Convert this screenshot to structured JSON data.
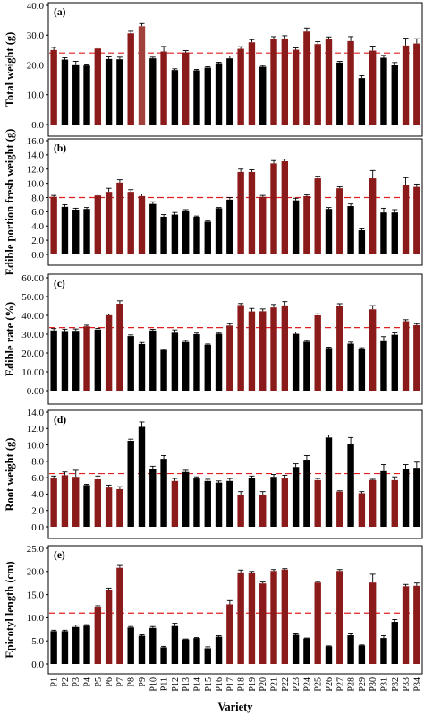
{
  "colors": {
    "dark_red": "#8b1a1a",
    "black": "#000000",
    "highlight_bar": "#a0413b",
    "reference_line": "#e02020",
    "frame": "#000000"
  },
  "x_axis_title": "Variety",
  "chart_data": [
    {
      "type": "bar",
      "panel_label": "(a)",
      "ylabel": "Total weight (g)",
      "ylim": [
        0,
        40
      ],
      "yticks": [
        "0.0",
        "10.0",
        "20.0",
        "30.0",
        "40.0"
      ],
      "yticks_values": [
        0,
        10,
        20,
        30,
        40
      ],
      "reference_line": 24.0,
      "categories": [
        "P1",
        "P2",
        "P3",
        "P4",
        "P5",
        "P6",
        "P7",
        "P8",
        "P9",
        "P10",
        "P11",
        "P12",
        "P13",
        "P14",
        "P15",
        "P16",
        "P17",
        "P18",
        "P19",
        "P20",
        "P21",
        "P22",
        "P23",
        "P24",
        "P25",
        "P26",
        "P27",
        "P28",
        "P29",
        "P30",
        "P31",
        "P32",
        "P33",
        "P34"
      ],
      "values": [
        25.0,
        21.8,
        20.2,
        19.8,
        25.5,
        22.0,
        21.9,
        30.6,
        33.0,
        22.2,
        24.5,
        18.3,
        24.2,
        18.2,
        19.1,
        20.6,
        22.2,
        25.4,
        27.6,
        19.4,
        28.7,
        28.9,
        25.1,
        31.2,
        27.0,
        28.6,
        20.8,
        28.0,
        15.6,
        24.8,
        22.4,
        20.1,
        26.5,
        27.2
      ],
      "errors": [
        0.9,
        0.6,
        1.0,
        0.5,
        0.5,
        0.7,
        0.7,
        0.7,
        0.9,
        0.4,
        1.7,
        0.4,
        0.6,
        0.3,
        0.3,
        0.3,
        0.8,
        0.7,
        0.9,
        0.4,
        0.8,
        0.9,
        0.6,
        1.2,
        0.8,
        0.8,
        0.4,
        1.5,
        0.8,
        1.5,
        0.8,
        0.7,
        2.5,
        1.6
      ],
      "colors": [
        "dark_red",
        "black",
        "black",
        "black",
        "dark_red",
        "black",
        "black",
        "dark_red",
        "highlight_bar",
        "black",
        "dark_red",
        "black",
        "dark_red",
        "black",
        "black",
        "black",
        "black",
        "dark_red",
        "dark_red",
        "black",
        "dark_red",
        "dark_red",
        "dark_red",
        "dark_red",
        "dark_red",
        "dark_red",
        "black",
        "dark_red",
        "black",
        "dark_red",
        "black",
        "black",
        "dark_red",
        "dark_red"
      ]
    },
    {
      "type": "bar",
      "panel_label": "(b)",
      "ylabel": "Edible portion fresh weight (g)",
      "ylim": [
        0,
        16
      ],
      "yticks": [
        "0.0",
        "2.0",
        "4.0",
        "6.0",
        "8.0",
        "10.0",
        "12.0",
        "14.0",
        "16.0"
      ],
      "yticks_values": [
        0,
        2,
        4,
        6,
        8,
        10,
        12,
        14,
        16
      ],
      "reference_line": 8.0,
      "categories": [
        "P1",
        "P2",
        "P3",
        "P4",
        "P5",
        "P6",
        "P7",
        "P8",
        "P9",
        "P10",
        "P11",
        "P12",
        "P13",
        "P14",
        "P15",
        "P16",
        "P17",
        "P18",
        "P19",
        "P20",
        "P21",
        "P22",
        "P23",
        "P24",
        "P25",
        "P26",
        "P27",
        "P28",
        "P29",
        "P30",
        "P31",
        "P32",
        "P33",
        "P34"
      ],
      "values": [
        8.1,
        6.7,
        6.3,
        6.4,
        8.3,
        8.8,
        10.1,
        8.8,
        8.2,
        7.1,
        5.3,
        5.6,
        6.1,
        5.3,
        4.6,
        6.5,
        7.7,
        11.6,
        11.6,
        8.1,
        12.8,
        13.1,
        7.6,
        8.2,
        10.7,
        6.4,
        9.3,
        6.8,
        3.4,
        10.7,
        5.9,
        5.9,
        9.7,
        9.5
      ],
      "errors": [
        0.2,
        0.3,
        0.2,
        0.2,
        0.2,
        0.5,
        0.4,
        0.3,
        0.3,
        0.3,
        0.3,
        0.3,
        0.2,
        0.1,
        0.1,
        0.1,
        0.3,
        0.4,
        0.3,
        0.2,
        0.4,
        0.3,
        0.3,
        0.2,
        0.3,
        0.2,
        0.2,
        0.3,
        0.2,
        1.1,
        0.6,
        0.4,
        1.1,
        0.4
      ],
      "colors": [
        "dark_red",
        "black",
        "black",
        "black",
        "dark_red",
        "dark_red",
        "dark_red",
        "dark_red",
        "dark_red",
        "black",
        "black",
        "black",
        "black",
        "black",
        "black",
        "black",
        "black",
        "dark_red",
        "dark_red",
        "dark_red",
        "dark_red",
        "dark_red",
        "black",
        "dark_red",
        "dark_red",
        "black",
        "dark_red",
        "black",
        "black",
        "dark_red",
        "black",
        "black",
        "dark_red",
        "dark_red"
      ]
    },
    {
      "type": "bar",
      "panel_label": "(c)",
      "ylabel": "Edible rate (%)",
      "ylim": [
        0,
        60
      ],
      "yticks": [
        "0.00",
        "10.00",
        "20.00",
        "30.00",
        "40.00",
        "50.00",
        "60.00"
      ],
      "yticks_values": [
        0,
        10,
        20,
        30,
        40,
        50,
        60
      ],
      "reference_line": 33.5,
      "categories": [
        "P1",
        "P2",
        "P3",
        "P4",
        "P5",
        "P6",
        "P7",
        "P8",
        "P9",
        "P10",
        "P11",
        "P12",
        "P13",
        "P14",
        "P15",
        "P16",
        "P17",
        "P18",
        "P19",
        "P20",
        "P21",
        "P22",
        "P23",
        "P24",
        "P25",
        "P26",
        "P27",
        "P28",
        "P29",
        "P30",
        "P31",
        "P32",
        "P33",
        "P34"
      ],
      "values": [
        32.0,
        31.7,
        31.8,
        34.2,
        32.5,
        40.0,
        46.2,
        29.0,
        24.8,
        32.0,
        21.7,
        30.8,
        25.9,
        30.0,
        24.4,
        30.2,
        34.6,
        45.5,
        42.1,
        42.2,
        44.2,
        45.3,
        30.2,
        26.0,
        40.0,
        22.7,
        45.2,
        25.0,
        22.4,
        43.2,
        26.3,
        29.7,
        36.9,
        34.8
      ],
      "errors": [
        1.0,
        1.0,
        1.0,
        0.6,
        0.6,
        0.6,
        1.5,
        0.6,
        0.8,
        0.6,
        0.4,
        1.5,
        0.8,
        0.6,
        0.4,
        0.4,
        1.0,
        0.8,
        1.6,
        1.2,
        1.6,
        2.0,
        1.0,
        0.6,
        0.8,
        0.4,
        1.0,
        0.8,
        0.4,
        2.0,
        2.4,
        1.0,
        0.8,
        0.8
      ],
      "colors": [
        "black",
        "black",
        "black",
        "dark_red",
        "black",
        "dark_red",
        "dark_red",
        "black",
        "black",
        "black",
        "black",
        "black",
        "black",
        "black",
        "black",
        "black",
        "dark_red",
        "dark_red",
        "dark_red",
        "dark_red",
        "dark_red",
        "dark_red",
        "black",
        "black",
        "dark_red",
        "black",
        "dark_red",
        "black",
        "black",
        "dark_red",
        "black",
        "black",
        "dark_red",
        "dark_red"
      ]
    },
    {
      "type": "bar",
      "panel_label": "(d)",
      "ylabel": "Root weight (g)",
      "ylim": [
        0,
        14
      ],
      "yticks": [
        "0.0",
        "2.0",
        "4.0",
        "6.0",
        "8.0",
        "10.0",
        "12.0",
        "14.0"
      ],
      "yticks_values": [
        0,
        2,
        4,
        6,
        8,
        10,
        12,
        14
      ],
      "reference_line": 6.5,
      "categories": [
        "P1",
        "P2",
        "P3",
        "P4",
        "P5",
        "P6",
        "P7",
        "P8",
        "P9",
        "P10",
        "P11",
        "P12",
        "P13",
        "P14",
        "P15",
        "P16",
        "P17",
        "P18",
        "P19",
        "P20",
        "P21",
        "P22",
        "P23",
        "P24",
        "P25",
        "P26",
        "P27",
        "P28",
        "P29",
        "P30",
        "P31",
        "P32",
        "P33",
        "P34"
      ],
      "values": [
        5.9,
        6.3,
        6.1,
        5.1,
        5.8,
        4.8,
        4.6,
        10.5,
        12.2,
        7.1,
        8.3,
        5.6,
        6.7,
        5.9,
        5.6,
        5.4,
        5.6,
        3.9,
        6.0,
        3.9,
        6.1,
        5.9,
        7.3,
        8.2,
        5.7,
        10.9,
        4.3,
        10.1,
        4.1,
        5.7,
        6.8,
        5.7,
        7.0,
        7.2
      ],
      "errors": [
        0.3,
        0.4,
        0.8,
        0.1,
        0.4,
        0.3,
        0.3,
        0.2,
        0.6,
        0.3,
        0.4,
        0.3,
        0.2,
        0.2,
        0.2,
        0.2,
        0.3,
        0.4,
        0.2,
        0.4,
        0.3,
        0.4,
        0.4,
        0.5,
        0.2,
        0.3,
        0.1,
        0.8,
        0.2,
        0.1,
        0.8,
        0.4,
        0.6,
        0.7
      ],
      "colors": [
        "dark_red",
        "dark_red",
        "dark_red",
        "black",
        "dark_red",
        "dark_red",
        "dark_red",
        "black",
        "black",
        "black",
        "black",
        "dark_red",
        "black",
        "black",
        "black",
        "black",
        "black",
        "dark_red",
        "black",
        "dark_red",
        "black",
        "dark_red",
        "black",
        "black",
        "dark_red",
        "black",
        "dark_red",
        "black",
        "dark_red",
        "dark_red",
        "black",
        "dark_red",
        "black",
        "black"
      ]
    },
    {
      "type": "bar",
      "panel_label": "(e)",
      "ylabel": "Epicotyl length (cm)",
      "ylim": [
        0,
        25
      ],
      "yticks": [
        "0.0",
        "5.0",
        "10.0",
        "15.0",
        "20.0",
        "25.0"
      ],
      "yticks_values": [
        0,
        5,
        10,
        15,
        20,
        25
      ],
      "reference_line": 11.0,
      "categories": [
        "P1",
        "P2",
        "P3",
        "P4",
        "P5",
        "P6",
        "P7",
        "P8",
        "P9",
        "P10",
        "P11",
        "P12",
        "P13",
        "P14",
        "P15",
        "P16",
        "P17",
        "P18",
        "P19",
        "P20",
        "P21",
        "P22",
        "P23",
        "P24",
        "P25",
        "P26",
        "P27",
        "P28",
        "P29",
        "P30",
        "P31",
        "P32",
        "P33",
        "P34"
      ],
      "values": [
        7.1,
        7.1,
        8.0,
        8.3,
        12.2,
        15.9,
        20.8,
        7.9,
        6.1,
        7.8,
        3.6,
        8.2,
        5.3,
        5.6,
        3.4,
        5.9,
        12.9,
        19.8,
        19.6,
        17.4,
        20.1,
        20.4,
        6.3,
        5.5,
        17.6,
        3.8,
        20.1,
        6.2,
        4.0,
        17.6,
        5.6,
        9.1,
        16.8,
        16.9
      ],
      "errors": [
        0.2,
        0.2,
        0.4,
        0.2,
        0.4,
        0.5,
        0.5,
        0.2,
        0.2,
        0.3,
        0.2,
        0.6,
        0.1,
        0.1,
        0.3,
        0.2,
        0.8,
        0.5,
        0.4,
        0.3,
        0.3,
        0.2,
        0.2,
        0.1,
        0.2,
        0.1,
        0.3,
        0.3,
        0.1,
        1.8,
        0.5,
        0.5,
        0.4,
        0.6
      ],
      "colors": [
        "black",
        "black",
        "black",
        "black",
        "dark_red",
        "dark_red",
        "dark_red",
        "black",
        "black",
        "black",
        "black",
        "black",
        "black",
        "black",
        "black",
        "black",
        "dark_red",
        "dark_red",
        "dark_red",
        "dark_red",
        "dark_red",
        "dark_red",
        "black",
        "black",
        "dark_red",
        "black",
        "dark_red",
        "black",
        "black",
        "dark_red",
        "black",
        "black",
        "dark_red",
        "dark_red"
      ]
    }
  ]
}
